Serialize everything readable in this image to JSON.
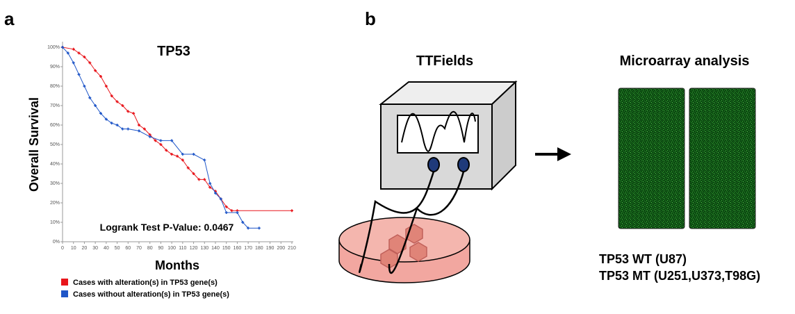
{
  "panel_a": {
    "label": "a"
  },
  "chart_data": {
    "type": "line",
    "title": "TP53",
    "y_label": "Overall Survival",
    "x_label": "Months",
    "annotation": "Logrank Test P-Value: 0.0467",
    "xlim": [
      0,
      210
    ],
    "ylim": [
      0,
      100
    ],
    "xticks": [
      0,
      10,
      20,
      30,
      40,
      50,
      60,
      70,
      80,
      90,
      100,
      110,
      120,
      130,
      140,
      150,
      160,
      170,
      180,
      190,
      200,
      210
    ],
    "yticks": [
      {
        "value": 0,
        "label": "0%"
      },
      {
        "value": 10,
        "label": "10%"
      },
      {
        "value": 20,
        "label": "20%"
      },
      {
        "value": 30,
        "label": "30%"
      },
      {
        "value": 40,
        "label": "40%"
      },
      {
        "value": 50,
        "label": "50%"
      },
      {
        "value": 60,
        "label": "60%"
      },
      {
        "value": 70,
        "label": "70%"
      },
      {
        "value": 80,
        "label": "80%"
      },
      {
        "value": 90,
        "label": "90%"
      },
      {
        "value": 100,
        "label": "100%"
      }
    ],
    "series": [
      {
        "name": "Cases with alteration(s) in TP53 gene(s)",
        "color": "#e8151b",
        "x": [
          0,
          10,
          15,
          20,
          25,
          30,
          35,
          40,
          45,
          50,
          55,
          60,
          65,
          70,
          75,
          80,
          85,
          90,
          95,
          100,
          105,
          110,
          115,
          120,
          125,
          130,
          135,
          140,
          145,
          150,
          155,
          160,
          210
        ],
        "values": [
          100,
          99,
          97,
          95,
          92,
          88,
          85,
          80,
          75,
          72,
          70,
          67,
          66,
          60,
          58,
          55,
          52,
          50,
          47,
          45,
          44,
          42,
          38,
          35,
          32,
          32,
          28,
          26,
          22,
          18,
          16,
          16,
          16
        ]
      },
      {
        "name": "Cases without alteration(s) in TP53 gene(s)",
        "color": "#1f56c8",
        "x": [
          0,
          5,
          10,
          15,
          20,
          25,
          30,
          35,
          40,
          45,
          50,
          55,
          60,
          70,
          80,
          90,
          100,
          110,
          120,
          130,
          135,
          140,
          145,
          150,
          160,
          165,
          170,
          180
        ],
        "values": [
          100,
          97,
          92,
          86,
          80,
          74,
          70,
          66,
          63,
          61,
          60,
          58,
          58,
          57,
          54,
          52,
          52,
          45,
          45,
          42,
          30,
          25,
          22,
          15,
          15,
          10,
          7,
          7
        ]
      }
    ]
  },
  "panel_b": {
    "label": "b",
    "left_title": "TTFields",
    "right_title": "Microarray analysis",
    "notes": [
      "TP53 WT (U87)",
      "TP53 MT (U251,U373,T98G)"
    ]
  }
}
